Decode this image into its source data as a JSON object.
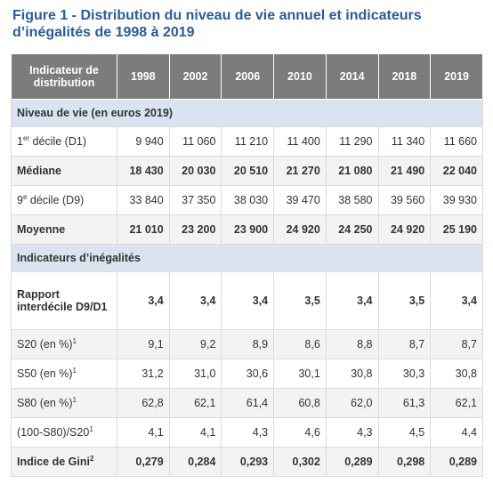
{
  "title": [
    "Figure 1 - Distribution du niveau de vie annuel et indicateurs",
    "d’inégalités de 1998 à 2019"
  ],
  "table": {
    "header": [
      "Indicateur de distribution",
      "1998",
      "2002",
      "2006",
      "2010",
      "2014",
      "2018",
      "2019"
    ],
    "rows": [
      {
        "section": "Niveau de vie (en euros 2019)"
      },
      {
        "label": [
          {
            "text": "1"
          },
          {
            "text": "er",
            "sup": true
          },
          {
            "text": " décile (D1)"
          }
        ],
        "bold": false,
        "cells": [
          "9 940",
          "11 060",
          "11 210",
          "11 400",
          "11 290",
          "11 340",
          "11 660"
        ]
      },
      {
        "label": [
          {
            "text": "Médiane"
          }
        ],
        "bold": true,
        "cells": [
          "18 430",
          "20 030",
          "20 510",
          "21 270",
          "21 080",
          "21 490",
          "22 040"
        ]
      },
      {
        "label": [
          {
            "text": "9"
          },
          {
            "text": "e",
            "sup": true
          },
          {
            "text": " décile (D9)"
          }
        ],
        "bold": false,
        "cells": [
          "33 840",
          "37 350",
          "38 030",
          "39 470",
          "38 580",
          "39 560",
          "39 930"
        ]
      },
      {
        "label": [
          {
            "text": "Moyenne"
          }
        ],
        "bold": true,
        "cells": [
          "21 010",
          "23 200",
          "23 900",
          "24 920",
          "24 250",
          "24 920",
          "25 190"
        ]
      },
      {
        "section": "Indicateurs d’inégalités"
      },
      {
        "label": [
          {
            "text": "Rapport interdécile D9/D1"
          }
        ],
        "bold": true,
        "cells": [
          "3,4",
          "3,4",
          "3,4",
          "3,5",
          "3,4",
          "3,5",
          "3,4"
        ]
      },
      {
        "label": [
          {
            "text": "S20 (en %)"
          },
          {
            "text": "1",
            "sup": true
          }
        ],
        "bold": false,
        "cells": [
          "9,1",
          "9,2",
          "8,9",
          "8,6",
          "8,8",
          "8,7",
          "8,7"
        ]
      },
      {
        "label": [
          {
            "text": "S50 (en %)"
          },
          {
            "text": "1",
            "sup": true
          }
        ],
        "bold": false,
        "cells": [
          "31,2",
          "31,0",
          "30,6",
          "30,1",
          "30,8",
          "30,3",
          "30,8"
        ]
      },
      {
        "label": [
          {
            "text": "S80 (en %)"
          },
          {
            "text": "1",
            "sup": true
          }
        ],
        "bold": false,
        "cells": [
          "62,8",
          "62,1",
          "61,4",
          "60,8",
          "62,0",
          "61,3",
          "62,1"
        ]
      },
      {
        "label": [
          {
            "text": "(100-S80)/S20"
          },
          {
            "text": "1",
            "sup": true
          }
        ],
        "bold": false,
        "cells": [
          "4,1",
          "4,1",
          "4,3",
          "4,6",
          "4,3",
          "4,5",
          "4,4"
        ]
      },
      {
        "label": [
          {
            "text": "Indice de Gini"
          },
          {
            "text": "2",
            "sup": true
          }
        ],
        "bold": true,
        "cells": [
          "0,279",
          "0,284",
          "0,293",
          "0,302",
          "0,289",
          "0,298",
          "0,289"
        ]
      }
    ]
  }
}
